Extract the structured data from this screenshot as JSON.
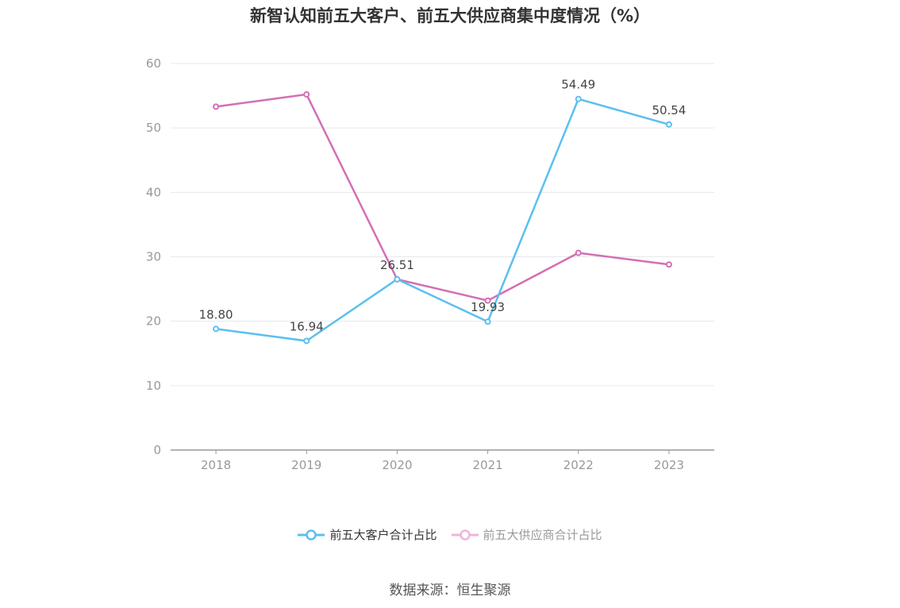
{
  "chart_data": {
    "type": "line",
    "title": "新智认知前五大客户、前五大供应商集中度情况（%）",
    "categories": [
      "2018",
      "2019",
      "2020",
      "2021",
      "2022",
      "2023"
    ],
    "ylim": [
      0,
      60
    ],
    "yticks": [
      0,
      10,
      20,
      30,
      40,
      50,
      60
    ],
    "grid": true,
    "legend_position": "bottom",
    "series": [
      {
        "name": "前五大客户合计占比",
        "color": "#5bc0ee",
        "values": [
          18.8,
          16.94,
          26.51,
          19.93,
          54.49,
          50.54
        ],
        "labels": [
          "18.80",
          "16.94",
          "26.51",
          "19.93",
          "54.49",
          "50.54"
        ]
      },
      {
        "name": "前五大供应商合计占比",
        "color": "#d36fb4",
        "legend_color": "#eeb4da",
        "values": [
          53.3,
          55.2,
          26.5,
          23.2,
          30.6,
          28.8
        ]
      }
    ]
  },
  "source": "数据来源：恒生聚源"
}
